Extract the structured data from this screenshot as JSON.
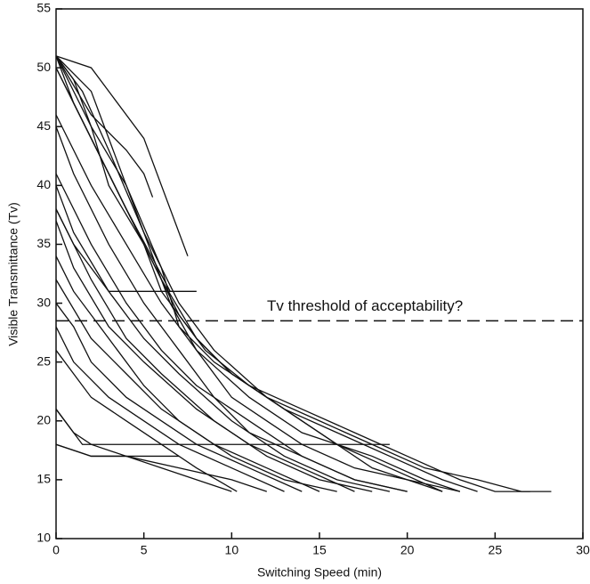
{
  "chart_data": {
    "type": "line",
    "x_label": "Switching Speed (min)",
    "y_label": "Visible Transmittance (Tv)",
    "annotation": "Tv threshold of acceptability?",
    "threshold": 28.5,
    "xlim": [
      0,
      30
    ],
    "xticks": [
      0,
      5,
      10,
      15,
      20,
      25,
      30
    ],
    "ylim": [
      10,
      55
    ],
    "yticks": [
      10,
      15,
      20,
      25,
      30,
      35,
      40,
      45,
      50,
      55
    ],
    "series": [
      {
        "color": "#111111",
        "x": [
          0,
          2,
          4,
          6,
          7,
          9,
          12,
          15,
          18,
          21,
          24,
          26.5,
          28.2
        ],
        "values": [
          51,
          48,
          40,
          33,
          28,
          25,
          22,
          20,
          18,
          16,
          15,
          14,
          14
        ]
      },
      {
        "color": "#111111",
        "x": [
          0,
          1,
          3,
          5,
          7,
          8.5,
          11,
          14,
          17,
          20,
          23,
          25,
          27
        ],
        "values": [
          51,
          47,
          41,
          35,
          29,
          26,
          23,
          21,
          19,
          17,
          15,
          14,
          14
        ]
      },
      {
        "color": "#111111",
        "x": [
          0,
          2,
          3,
          5,
          6,
          8,
          10,
          13,
          16,
          19,
          22,
          24
        ],
        "values": [
          51,
          45,
          40,
          35,
          31,
          27,
          24,
          21,
          19,
          17,
          15,
          14
        ]
      },
      {
        "color": "#111111",
        "x": [
          0,
          1.5,
          3,
          5,
          6.5,
          8,
          11,
          14,
          18,
          21,
          23
        ],
        "values": [
          51,
          48,
          43,
          36,
          30,
          26,
          22,
          19,
          17,
          15,
          14
        ]
      },
      {
        "color": "#111111",
        "x": [
          0,
          2,
          4,
          6,
          8,
          10,
          13,
          16,
          19,
          22
        ],
        "values": [
          50,
          44,
          38,
          32,
          27,
          24,
          21,
          18,
          16,
          14
        ]
      },
      {
        "color": "#111111",
        "x": [
          0,
          1,
          2,
          4,
          5,
          7,
          9,
          12,
          15,
          18,
          20,
          22
        ],
        "values": [
          51,
          49,
          45,
          40,
          36,
          30,
          26,
          22,
          19,
          16,
          15,
          14
        ]
      },
      {
        "color": "#111111",
        "x": [
          0,
          2,
          5,
          7.5
        ],
        "values": [
          51,
          50,
          44,
          34
        ]
      },
      {
        "color": "#111111",
        "x": [
          0,
          2,
          4,
          5,
          5.5
        ],
        "values": [
          51,
          46,
          43,
          41,
          39
        ]
      },
      {
        "color": "#111111",
        "x": [
          0,
          1,
          3,
          4,
          6.5
        ],
        "values": [
          50,
          47,
          41,
          38,
          31
        ]
      },
      {
        "color": "#111111",
        "x": [
          0,
          2,
          4,
          6,
          8,
          10,
          12,
          14,
          17,
          20,
          23
        ],
        "values": [
          46,
          40,
          35,
          30,
          26,
          22,
          20,
          18,
          16,
          15,
          14
        ]
      },
      {
        "color": "#111111",
        "x": [
          0,
          1,
          3,
          5,
          7,
          9,
          11,
          14,
          17,
          20
        ],
        "values": [
          45,
          41,
          35,
          30,
          26,
          22,
          19,
          17,
          15,
          14
        ]
      },
      {
        "color": "#111111",
        "x": [
          0,
          2,
          4,
          6,
          8,
          11,
          14,
          17,
          20
        ],
        "values": [
          41,
          35,
          30,
          26,
          23,
          20,
          17,
          15,
          14
        ]
      },
      {
        "color": "#111111",
        "x": [
          0,
          1,
          3,
          5,
          7,
          10,
          13,
          16,
          19
        ],
        "values": [
          40,
          36,
          31,
          27,
          24,
          20,
          17,
          15,
          14
        ]
      },
      {
        "color": "#111111",
        "x": [
          0,
          2,
          4,
          6,
          9,
          12,
          15,
          18
        ],
        "values": [
          38,
          32,
          27,
          24,
          20,
          17,
          15,
          14
        ]
      },
      {
        "color": "#111111",
        "x": [
          0,
          1,
          3,
          5,
          8,
          11,
          14,
          17
        ],
        "values": [
          37,
          33,
          28,
          25,
          21,
          18,
          16,
          14
        ]
      },
      {
        "color": "#111111",
        "x": [
          0,
          1,
          2,
          3.5,
          5,
          7,
          10,
          13,
          16
        ],
        "values": [
          34,
          31,
          29,
          26,
          23,
          20,
          17,
          15,
          14
        ]
      },
      {
        "color": "#111111",
        "x": [
          0,
          2,
          4,
          6,
          9,
          12,
          15
        ],
        "values": [
          32,
          27,
          24,
          21,
          18,
          16,
          14
        ]
      },
      {
        "color": "#111111",
        "x": [
          0,
          1,
          2,
          4,
          6,
          8,
          11,
          14
        ],
        "values": [
          30,
          28,
          25,
          22,
          20,
          18,
          16,
          14
        ]
      },
      {
        "color": "#111111",
        "x": [
          0,
          1,
          3,
          5,
          7,
          10,
          13
        ],
        "values": [
          28,
          25,
          22,
          20,
          18,
          16,
          14
        ]
      },
      {
        "color": "#111111",
        "x": [
          0,
          2,
          4,
          6,
          8,
          10.3
        ],
        "values": [
          26,
          22,
          20,
          18,
          16,
          14
        ]
      },
      {
        "color": "#111111",
        "x": [
          0,
          1,
          2,
          4,
          6,
          8,
          10
        ],
        "values": [
          21,
          19,
          18,
          17,
          16,
          15,
          14
        ]
      },
      {
        "color": "#111111",
        "x": [
          0,
          2,
          4,
          7,
          10,
          12
        ],
        "values": [
          18,
          17,
          17,
          16,
          15,
          14
        ]
      },
      {
        "color": "#111111",
        "x": [
          0,
          1.5,
          3,
          6,
          10,
          14,
          19
        ],
        "values": [
          21,
          18,
          18,
          18,
          18,
          18,
          18
        ]
      },
      {
        "color": "#111111",
        "x": [
          0,
          2,
          4,
          7
        ],
        "values": [
          18,
          17,
          17,
          17
        ]
      },
      {
        "color": "#111111",
        "x": [
          0,
          1,
          3,
          4,
          6,
          8
        ],
        "values": [
          38,
          35,
          31,
          31,
          31,
          31
        ]
      }
    ]
  }
}
